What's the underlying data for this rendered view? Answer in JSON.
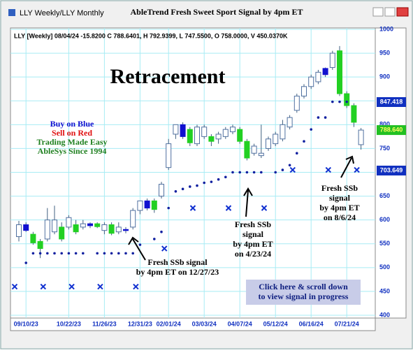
{
  "window_title": "LLY Weekly/LLY Monthly",
  "chart_data": {
    "type": "candlestick",
    "title": "AbleTrend Fresh Sweet Sport Signal by 4pm ET",
    "info": "LLY [Weekly] 08/04/24 -15.8200 C 788.6401, H 792.9399, L 747.5500, O 758.0000, V 450.0370K",
    "categories": [
      null,
      "09/10/23",
      null,
      null,
      null,
      null,
      null,
      "10/22/23",
      null,
      null,
      null,
      null,
      "11/26/23",
      null,
      null,
      null,
      null,
      "12/31/23",
      null,
      null,
      null,
      "02/01/24",
      null,
      null,
      null,
      null,
      "03/03/24",
      null,
      null,
      null,
      null,
      "04/07/24",
      null,
      null,
      null,
      null,
      "05/12/24",
      null,
      null,
      null,
      null,
      "06/16/24",
      null,
      null,
      null,
      null,
      "07/21/24",
      null,
      null
    ],
    "open": [
      565,
      590,
      570,
      555,
      560,
      575,
      585,
      585,
      590,
      585,
      588,
      592,
      578,
      590,
      575,
      578,
      585,
      620,
      625,
      640,
      650,
      710,
      780,
      775,
      790,
      760,
      775,
      775,
      770,
      775,
      785,
      790,
      765,
      740,
      735,
      750,
      760,
      770,
      795,
      830,
      860,
      880,
      890,
      905,
      920,
      955,
      865,
      840,
      758
    ],
    "high": [
      598,
      595,
      575,
      560,
      625,
      630,
      595,
      610,
      600,
      600,
      595,
      595,
      595,
      595,
      595,
      585,
      625,
      640,
      645,
      645,
      680,
      770,
      800,
      805,
      795,
      800,
      800,
      780,
      785,
      795,
      800,
      795,
      770,
      760,
      800,
      775,
      785,
      810,
      820,
      865,
      885,
      905,
      915,
      920,
      955,
      965,
      870,
      845,
      792.94
    ],
    "low": [
      555,
      575,
      548,
      520,
      555,
      570,
      555,
      580,
      570,
      580,
      583,
      583,
      570,
      568,
      570,
      572,
      580,
      612,
      620,
      615,
      645,
      705,
      770,
      770,
      755,
      755,
      770,
      755,
      760,
      770,
      780,
      760,
      725,
      735,
      730,
      745,
      755,
      765,
      790,
      825,
      855,
      875,
      885,
      900,
      915,
      860,
      835,
      795,
      747.55
    ],
    "close": [
      590,
      578,
      552,
      540,
      600,
      600,
      560,
      605,
      575,
      592,
      592,
      586,
      590,
      572,
      585,
      580,
      620,
      640,
      640,
      622,
      675,
      760,
      800,
      800,
      762,
      795,
      795,
      765,
      780,
      790,
      795,
      765,
      730,
      755,
      740,
      770,
      780,
      800,
      815,
      860,
      880,
      900,
      910,
      918,
      950,
      865,
      840,
      805,
      788.64
    ],
    "candle_colors": [
      "#ffffff",
      "#1010d0",
      "#22d022",
      "#22d022",
      "#ffffff",
      "#ffffff",
      "#22d022",
      "#ffffff",
      "#22d022",
      "#ffffff",
      "#1010d0",
      "#22d022",
      "#ffffff",
      "#22d022",
      "#ffffff",
      "#1010d0",
      "#ffffff",
      "#ffffff",
      "#1010d0",
      "#22d022",
      "#ffffff",
      "#ffffff",
      "#ffffff",
      "#1010d0",
      "#22d022",
      "#ffffff",
      "#ffffff",
      "#22d022",
      "#ffffff",
      "#ffffff",
      "#ffffff",
      "#22d022",
      "#22d022",
      "#ffffff",
      "#ffffff",
      "#ffffff",
      "#ffffff",
      "#ffffff",
      "#ffffff",
      "#ffffff",
      "#ffffff",
      "#ffffff",
      "#ffffff",
      "#1010d0",
      "#ffffff",
      "#22d022",
      "#22d022",
      "#22d022",
      "#ffffff"
    ],
    "stops": [
      null,
      510,
      530,
      530,
      530,
      530,
      530,
      530,
      530,
      530,
      null,
      530,
      530,
      530,
      530,
      530,
      530,
      548,
      null,
      560,
      575,
      625,
      660,
      665,
      670,
      672,
      678,
      680,
      685,
      690,
      700,
      700,
      700,
      700,
      700,
      null,
      700,
      705,
      715,
      740,
      765,
      790,
      815,
      815,
      848,
      848,
      848,
      null,
      null
    ],
    "signals": [
      460,
      null,
      null,
      null,
      460,
      null,
      null,
      null,
      460,
      null,
      null,
      null,
      460,
      null,
      null,
      null,
      null,
      460,
      null,
      null,
      null,
      540,
      null,
      null,
      null,
      625,
      null,
      null,
      null,
      null,
      625,
      null,
      null,
      null,
      null,
      625,
      null,
      null,
      null,
      705,
      null,
      null,
      null,
      null,
      705,
      null,
      null,
      null,
      705
    ],
    "ylim": [
      400,
      1000
    ],
    "yticks": [
      400,
      450,
      500,
      550,
      600,
      650,
      700,
      750,
      800,
      850,
      900,
      950,
      1000
    ],
    "grid": true,
    "price_tags": [
      {
        "value": 847.418,
        "color": "#1030c0"
      },
      {
        "value": 788.64,
        "label": "788.640",
        "color": "#22c022"
      },
      {
        "value": 703.649,
        "color": "#1030c0"
      }
    ],
    "annotations": {
      "headline": "Retracement",
      "legend_lines": [
        {
          "text": "Buy on Blue",
          "color": "#1010d0"
        },
        {
          "text": "Sell on Red",
          "color": "#e01010"
        },
        {
          "text": "Trading Made Easy",
          "color": "#208020"
        },
        {
          "text": "AbleSys Since 1994",
          "color": "#208020"
        }
      ],
      "signal_1": [
        "Fresh SSb signal",
        "by 4pm ET on 12/27/23"
      ],
      "signal_2": [
        "Fresh SSb",
        "signal",
        "by 4pm ET",
        "on 4/23/24"
      ],
      "signal_3": [
        "Fresh SSb",
        "signal",
        "by 4pm ET",
        "on 8/6/24"
      ],
      "button": [
        "Click here & scroll down",
        "to view signal in progress"
      ]
    }
  }
}
